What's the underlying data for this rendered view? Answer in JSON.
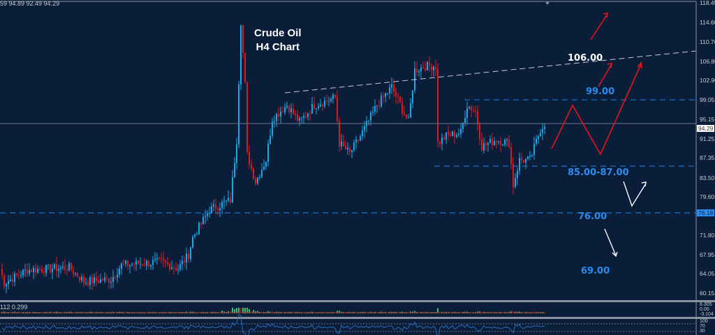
{
  "header": {
    "ohlc_text": "59 94.89 92.49 94.29"
  },
  "title": {
    "line1": "Crude Oil",
    "line2": "H4 Chart"
  },
  "annotations": {
    "level_106": "106.00",
    "level_99": "99.00",
    "level_85_87": "85.00-87.00",
    "level_76": "76.00",
    "level_69": "69.00"
  },
  "price_axis": {
    "ticks": [
      "118.45",
      "114.60",
      "110.70",
      "106.80",
      "102.90",
      "99.05",
      "95.15",
      "91.25",
      "87.35",
      "83.50",
      "79.60",
      "71.80",
      "67.95",
      "64.05",
      "60.15"
    ],
    "current_price": "94.29",
    "level_tag": "76.18"
  },
  "indicator1": {
    "label": "112 0.299",
    "ticks": [
      "8.305",
      "0.00",
      "-3.104"
    ]
  },
  "indicator2": {
    "ticks": [
      "100",
      "70",
      "30",
      "0"
    ]
  },
  "colors": {
    "background": "#0a1e39",
    "bull": "#1ea7e8",
    "bear": "#e8141c",
    "level": "#1f6fc4",
    "label_blue": "#2b8df0",
    "forecast": "#e8141c",
    "hist": "#3fbf74"
  },
  "chart_data": {
    "type": "candlestick",
    "ylim": [
      58.5,
      118.45
    ],
    "price_anchors": [
      [
        0,
        65.25
      ],
      [
        2,
        62.4
      ],
      [
        13,
        65
      ],
      [
        33,
        65.5
      ],
      [
        40,
        62.7
      ],
      [
        53,
        63.1
      ],
      [
        58,
        66
      ],
      [
        77,
        66.6
      ],
      [
        85,
        65.3
      ],
      [
        90,
        68
      ],
      [
        92,
        71.5
      ],
      [
        100,
        77
      ],
      [
        110,
        79
      ],
      [
        113,
        91
      ],
      [
        115,
        114.8
      ],
      [
        117,
        102
      ],
      [
        118,
        88
      ],
      [
        122,
        82.7
      ],
      [
        127,
        87
      ],
      [
        130,
        95.3
      ],
      [
        137,
        98
      ],
      [
        143,
        94.6
      ],
      [
        150,
        98
      ],
      [
        160,
        99.5
      ],
      [
        162,
        90.4
      ],
      [
        167,
        88.3
      ],
      [
        173,
        92.5
      ],
      [
        180,
        98
      ],
      [
        187,
        101.6
      ],
      [
        195,
        94.6
      ],
      [
        198,
        105
      ],
      [
        203,
        105.8
      ],
      [
        208,
        105.8
      ],
      [
        209,
        90.4
      ],
      [
        213,
        91.8
      ],
      [
        220,
        92.5
      ],
      [
        223,
        98
      ],
      [
        227,
        96.7
      ],
      [
        230,
        89.7
      ],
      [
        237,
        91.1
      ],
      [
        243,
        90.4
      ],
      [
        245,
        82
      ],
      [
        248,
        87
      ],
      [
        253,
        87
      ],
      [
        258,
        93.2
      ],
      [
        260,
        94.29
      ]
    ]
  }
}
